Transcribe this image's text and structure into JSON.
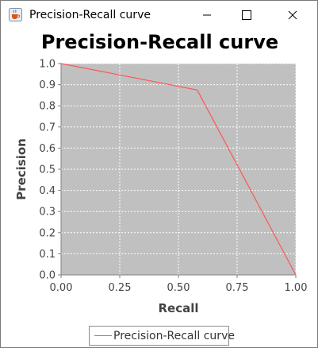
{
  "window": {
    "title": "Precision-Recall curve",
    "icon": "java-coffee-cup-icon",
    "controls": [
      "minimize-icon",
      "maximize-icon",
      "close-icon"
    ]
  },
  "chart_data": {
    "type": "line",
    "title": "Precision-Recall curve",
    "xlabel": "Recall",
    "ylabel": "Precision",
    "xlim": [
      0.0,
      1.0
    ],
    "ylim": [
      0.0,
      1.0
    ],
    "x_ticks": [
      "0.00",
      "0.25",
      "0.50",
      "0.75",
      "1.00"
    ],
    "y_ticks": [
      "0.0",
      "0.1",
      "0.2",
      "0.3",
      "0.4",
      "0.5",
      "0.6",
      "0.7",
      "0.8",
      "0.9",
      "1.0"
    ],
    "grid": true,
    "legend": "bottom-center",
    "background": "#c0c0c0",
    "series": [
      {
        "name": "Precision-Recall curve",
        "color": "#ff5555",
        "x": [
          0.0,
          0.58,
          1.0
        ],
        "y": [
          1.0,
          0.875,
          0.0
        ]
      }
    ]
  }
}
